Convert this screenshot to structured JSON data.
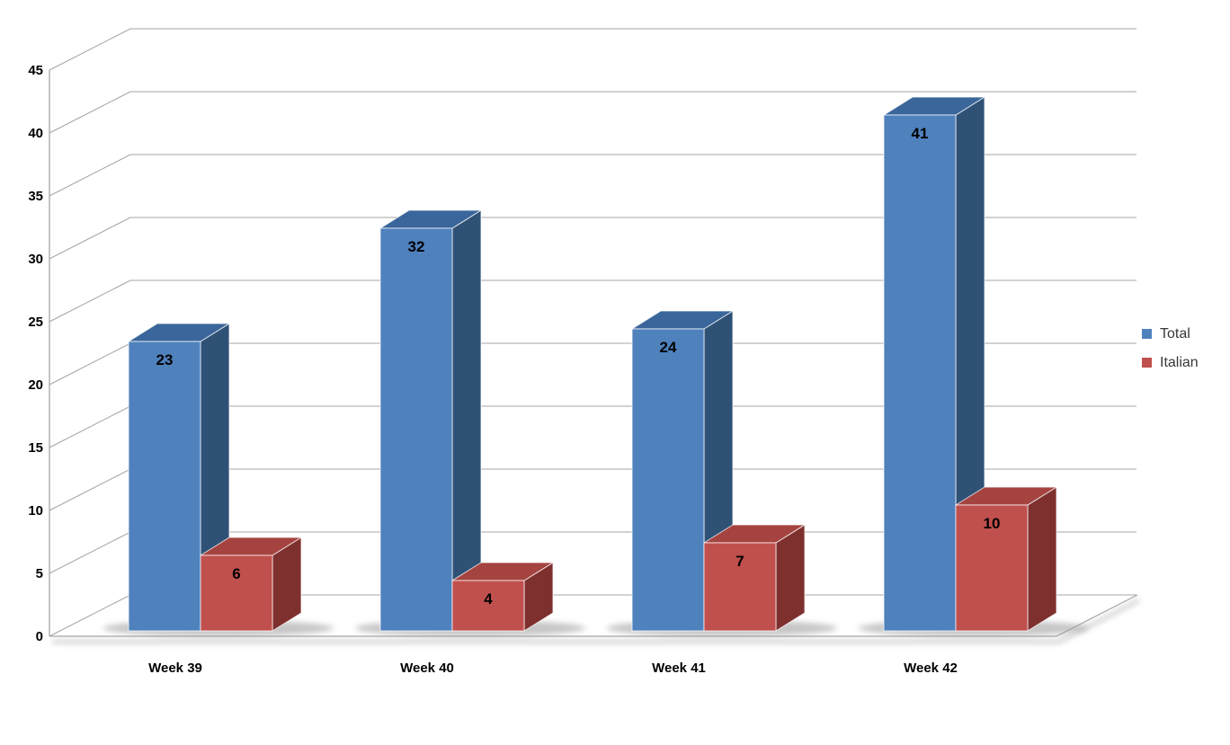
{
  "chart_data": {
    "type": "bar",
    "subtype": "3d-clustered-column",
    "title": "",
    "xlabel": "",
    "ylabel": "",
    "categories": [
      "Week 39",
      "Week 40",
      "Week 41",
      "Week 42"
    ],
    "series": [
      {
        "name": "Total",
        "values": [
          23,
          32,
          24,
          41
        ],
        "color_front": "#4F81BD",
        "color_top": "#3A669B",
        "color_side": "#2F5176"
      },
      {
        "name": "Italian",
        "values": [
          6,
          4,
          7,
          10
        ],
        "color_front": "#C0504D",
        "color_top": "#A54340",
        "color_side": "#7E302E"
      }
    ],
    "ylim": [
      0,
      45
    ],
    "ytick_step": 5,
    "yticks": [
      0,
      5,
      10,
      15,
      20,
      25,
      30,
      35,
      40,
      45
    ],
    "grid": true,
    "data_labels": true,
    "legend_position": "right",
    "colors": {
      "gridline": "#A6A6A6",
      "axis_line": "#A6A6A6",
      "tick_label": "#000000",
      "data_label": "#000000",
      "legend_text": "#383838",
      "background": "#FFFFFF",
      "shadow": "#989898"
    }
  }
}
